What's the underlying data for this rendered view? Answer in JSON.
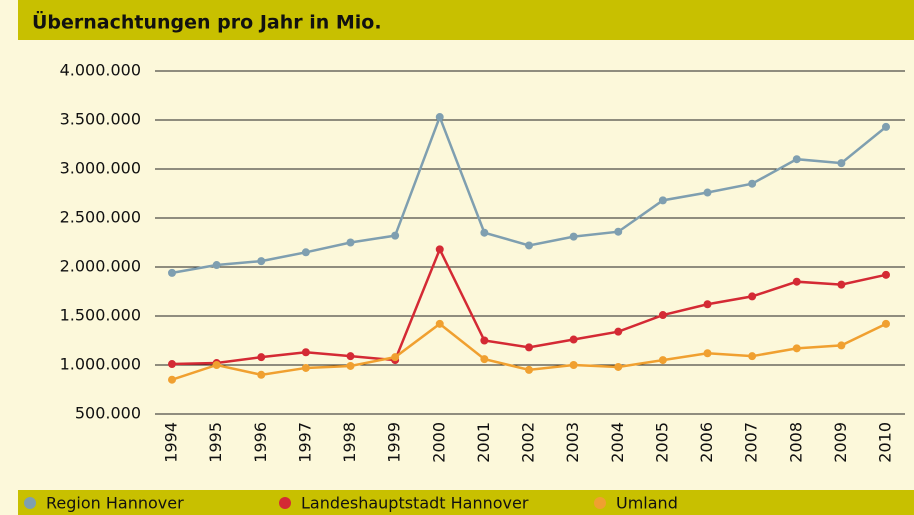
{
  "chart_data": {
    "type": "line",
    "title": "Übernachtungen pro Jahr in Mio.",
    "categories": [
      "1994",
      "1995",
      "1996",
      "1997",
      "1998",
      "1999",
      "2000",
      "2001",
      "2002",
      "2003",
      "2004",
      "2005",
      "2006",
      "2007",
      "2008",
      "2009",
      "2010"
    ],
    "series": [
      {
        "name": "Region Hannover",
        "color": "#7f9fb0",
        "values": [
          1940000,
          2020000,
          2060000,
          2150000,
          2250000,
          2320000,
          3530000,
          2350000,
          2220000,
          2310000,
          2360000,
          2680000,
          2760000,
          2850000,
          3100000,
          3060000,
          3430000
        ]
      },
      {
        "name": "Landeshauptstadt Hannover",
        "color": "#d42a34",
        "values": [
          1010000,
          1020000,
          1080000,
          1130000,
          1090000,
          1050000,
          2180000,
          1250000,
          1180000,
          1260000,
          1340000,
          1510000,
          1620000,
          1700000,
          1850000,
          1820000,
          1920000
        ]
      },
      {
        "name": "Umland",
        "color": "#f0a030",
        "values": [
          850000,
          1000000,
          900000,
          970000,
          990000,
          1080000,
          1420000,
          1060000,
          950000,
          1000000,
          980000,
          1050000,
          1120000,
          1090000,
          1170000,
          1200000,
          1420000
        ]
      }
    ],
    "ylim": [
      500000,
      4000000
    ],
    "yticks": [
      {
        "value": 500000,
        "label": "500.000"
      },
      {
        "value": 1000000,
        "label": "1.000.000"
      },
      {
        "value": 1500000,
        "label": "1.500.000"
      },
      {
        "value": 2000000,
        "label": "2.000.000"
      },
      {
        "value": 2500000,
        "label": "2.500.000"
      },
      {
        "value": 3000000,
        "label": "3.000.000"
      },
      {
        "value": 3500000,
        "label": "3.500.000"
      },
      {
        "value": 4000000,
        "label": "4.000.000"
      }
    ],
    "grid": true,
    "legend": "bottom"
  }
}
